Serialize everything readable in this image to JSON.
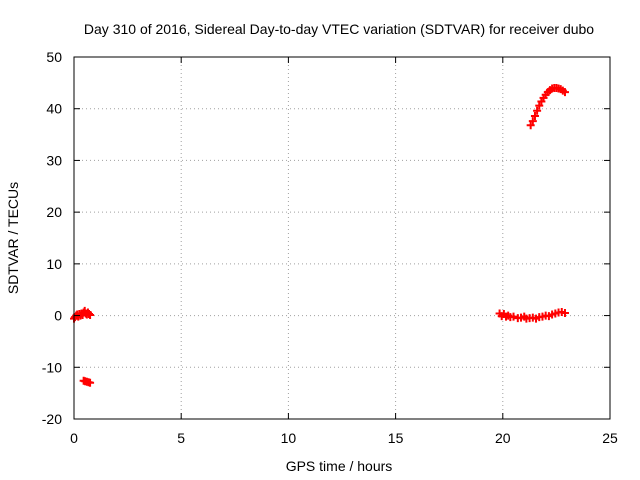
{
  "chart_data": {
    "type": "scatter",
    "title": "Day 310 of 2016, Sidereal Day-to-day VTEC variation (SDTVAR) for receiver dubo",
    "xlabel": "GPS time / hours",
    "ylabel": "SDTVAR / TECUs",
    "xlim": [
      0,
      25
    ],
    "ylim": [
      -20,
      50
    ],
    "x_ticks": [
      0,
      5,
      10,
      15,
      20,
      25
    ],
    "y_ticks": [
      -20,
      -10,
      0,
      10,
      20,
      30,
      40,
      50
    ],
    "grid": true,
    "marker": "+",
    "colors": {
      "series": "#ff0000",
      "grid": "#a0a0a0",
      "axis": "#000000"
    },
    "series": [
      {
        "points": [
          [
            0.0,
            -0.6
          ],
          [
            0.05,
            -0.3
          ],
          [
            0.1,
            0.0
          ],
          [
            0.15,
            0.2
          ],
          [
            0.2,
            -0.2
          ],
          [
            0.25,
            0.3
          ],
          [
            0.3,
            0.0
          ],
          [
            0.35,
            0.4
          ],
          [
            0.4,
            0.1
          ],
          [
            0.45,
            0.6
          ],
          [
            0.5,
            0.9
          ],
          [
            0.55,
            0.4
          ],
          [
            0.6,
            0.2
          ],
          [
            0.65,
            0.6
          ],
          [
            0.7,
            0.3
          ],
          [
            0.75,
            0.1
          ],
          [
            0.45,
            -12.6
          ],
          [
            0.52,
            -12.7
          ],
          [
            0.6,
            -12.8
          ],
          [
            0.68,
            -12.9
          ],
          [
            0.75,
            -13.0
          ],
          [
            19.85,
            0.4
          ],
          [
            19.95,
            -0.1
          ],
          [
            20.05,
            0.3
          ],
          [
            20.15,
            -0.2
          ],
          [
            20.25,
            0.0
          ],
          [
            20.35,
            -0.3
          ],
          [
            20.5,
            -0.2
          ],
          [
            20.7,
            -0.5
          ],
          [
            20.85,
            -0.4
          ],
          [
            21.0,
            -0.2
          ],
          [
            21.1,
            -0.6
          ],
          [
            21.25,
            -0.5
          ],
          [
            21.4,
            -0.4
          ],
          [
            21.55,
            -0.6
          ],
          [
            21.7,
            -0.3
          ],
          [
            21.85,
            -0.2
          ],
          [
            22.0,
            0.0
          ],
          [
            22.15,
            -0.1
          ],
          [
            22.3,
            0.2
          ],
          [
            22.45,
            0.4
          ],
          [
            22.6,
            0.6
          ],
          [
            22.75,
            0.7
          ],
          [
            22.9,
            0.5
          ],
          [
            21.3,
            36.8
          ],
          [
            21.4,
            37.6
          ],
          [
            21.5,
            38.6
          ],
          [
            21.6,
            39.6
          ],
          [
            21.7,
            40.6
          ],
          [
            21.8,
            41.4
          ],
          [
            21.9,
            42.1
          ],
          [
            22.0,
            42.7
          ],
          [
            22.1,
            43.2
          ],
          [
            22.2,
            43.6
          ],
          [
            22.3,
            43.9
          ],
          [
            22.4,
            44.0
          ],
          [
            22.5,
            44.0
          ],
          [
            22.6,
            43.9
          ],
          [
            22.7,
            43.8
          ],
          [
            22.8,
            43.5
          ],
          [
            22.9,
            43.2
          ]
        ]
      }
    ]
  }
}
